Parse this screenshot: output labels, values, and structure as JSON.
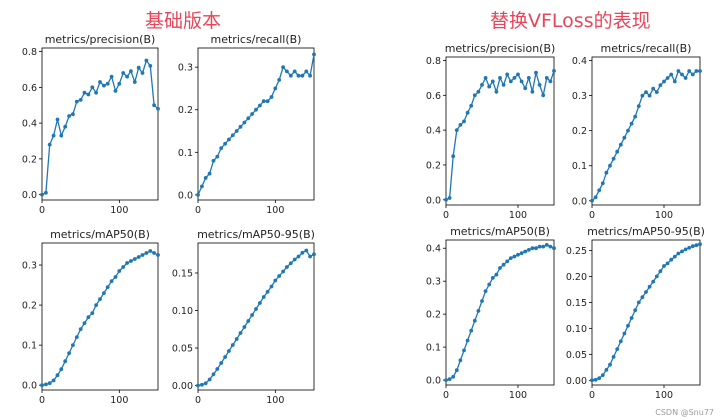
{
  "headings": {
    "left": "基础版本",
    "right": "替换VFLoss的表现"
  },
  "watermark": "CSDN @Snu77",
  "style": {
    "line_color": "#1f77b4",
    "marker_color": "#1f77b4",
    "heading_color": "#e8455a"
  },
  "chart_data": [
    {
      "type": "line",
      "group": "left",
      "title": "metrics/precision(B)",
      "xlim": [
        0,
        150
      ],
      "ylim": [
        -0.03,
        0.82
      ],
      "xticks": [
        0,
        100
      ],
      "yticks": [
        0.0,
        0.2,
        0.4,
        0.6,
        0.8
      ],
      "ytick_labels": [
        "0.0",
        "0.2",
        "0.4",
        "0.6",
        "0.8"
      ],
      "x": [
        0,
        5,
        10,
        15,
        20,
        25,
        30,
        35,
        40,
        45,
        50,
        55,
        60,
        65,
        70,
        75,
        80,
        85,
        90,
        95,
        100,
        105,
        110,
        115,
        120,
        125,
        130,
        135,
        140,
        145,
        150
      ],
      "y": [
        0.0,
        0.01,
        0.28,
        0.33,
        0.42,
        0.33,
        0.38,
        0.44,
        0.45,
        0.52,
        0.53,
        0.57,
        0.56,
        0.6,
        0.57,
        0.63,
        0.61,
        0.62,
        0.66,
        0.58,
        0.62,
        0.68,
        0.66,
        0.69,
        0.63,
        0.71,
        0.68,
        0.75,
        0.72,
        0.5,
        0.48
      ]
    },
    {
      "type": "line",
      "group": "left",
      "title": "metrics/recall(B)",
      "xlim": [
        0,
        150
      ],
      "ylim": [
        -0.012,
        0.345
      ],
      "xticks": [
        0,
        100
      ],
      "yticks": [
        0.0,
        0.1,
        0.2,
        0.3
      ],
      "ytick_labels": [
        "0.0",
        "0.1",
        "0.2",
        "0.3"
      ],
      "x": [
        0,
        5,
        10,
        15,
        20,
        25,
        30,
        35,
        40,
        45,
        50,
        55,
        60,
        65,
        70,
        75,
        80,
        85,
        90,
        95,
        100,
        105,
        110,
        115,
        120,
        125,
        130,
        135,
        140,
        145,
        150
      ],
      "y": [
        0.0,
        0.02,
        0.04,
        0.05,
        0.08,
        0.09,
        0.11,
        0.12,
        0.13,
        0.14,
        0.15,
        0.16,
        0.17,
        0.18,
        0.19,
        0.2,
        0.21,
        0.22,
        0.22,
        0.23,
        0.25,
        0.27,
        0.3,
        0.29,
        0.28,
        0.29,
        0.28,
        0.28,
        0.29,
        0.28,
        0.33
      ]
    },
    {
      "type": "line",
      "group": "left",
      "title": "metrics/mAP50(B)",
      "xlim": [
        0,
        150
      ],
      "ylim": [
        -0.012,
        0.355
      ],
      "xticks": [
        0,
        100
      ],
      "yticks": [
        0.0,
        0.1,
        0.2,
        0.3
      ],
      "ytick_labels": [
        "0.0",
        "0.1",
        "0.2",
        "0.3"
      ],
      "x": [
        0,
        5,
        10,
        15,
        20,
        25,
        30,
        35,
        40,
        45,
        50,
        55,
        60,
        65,
        70,
        75,
        80,
        85,
        90,
        95,
        100,
        105,
        110,
        115,
        120,
        125,
        130,
        135,
        140,
        145,
        150
      ],
      "y": [
        0.0,
        0.002,
        0.005,
        0.012,
        0.025,
        0.04,
        0.06,
        0.08,
        0.1,
        0.12,
        0.14,
        0.155,
        0.17,
        0.18,
        0.2,
        0.215,
        0.23,
        0.245,
        0.26,
        0.27,
        0.285,
        0.295,
        0.305,
        0.31,
        0.315,
        0.32,
        0.325,
        0.33,
        0.335,
        0.33,
        0.325
      ]
    },
    {
      "type": "line",
      "group": "left",
      "title": "metrics/mAP50-95(B)",
      "xlim": [
        0,
        150
      ],
      "ylim": [
        -0.006,
        0.19
      ],
      "xticks": [
        0,
        100
      ],
      "yticks": [
        0.0,
        0.05,
        0.1,
        0.15
      ],
      "ytick_labels": [
        "0.00",
        "0.05",
        "0.10",
        "0.15"
      ],
      "x": [
        0,
        5,
        10,
        15,
        20,
        25,
        30,
        35,
        40,
        45,
        50,
        55,
        60,
        65,
        70,
        75,
        80,
        85,
        90,
        95,
        100,
        105,
        110,
        115,
        120,
        125,
        130,
        135,
        140,
        145,
        150
      ],
      "y": [
        0.0,
        0.001,
        0.003,
        0.008,
        0.015,
        0.022,
        0.03,
        0.038,
        0.046,
        0.054,
        0.062,
        0.07,
        0.078,
        0.086,
        0.094,
        0.102,
        0.11,
        0.118,
        0.125,
        0.132,
        0.14,
        0.146,
        0.152,
        0.158,
        0.163,
        0.168,
        0.172,
        0.177,
        0.18,
        0.172,
        0.175
      ]
    },
    {
      "type": "line",
      "group": "right",
      "title": "metrics/precision(B)",
      "xlim": [
        0,
        150
      ],
      "ylim": [
        -0.03,
        0.82
      ],
      "xticks": [
        0,
        100
      ],
      "yticks": [
        0.0,
        0.2,
        0.4,
        0.6,
        0.8
      ],
      "ytick_labels": [
        "0.0",
        "0.2",
        "0.4",
        "0.6",
        "0.8"
      ],
      "x": [
        0,
        5,
        10,
        15,
        20,
        25,
        30,
        35,
        40,
        45,
        50,
        55,
        60,
        65,
        70,
        75,
        80,
        85,
        90,
        95,
        100,
        105,
        110,
        115,
        120,
        125,
        130,
        135,
        140,
        145,
        150
      ],
      "y": [
        0.0,
        0.01,
        0.25,
        0.4,
        0.43,
        0.45,
        0.5,
        0.54,
        0.6,
        0.62,
        0.66,
        0.7,
        0.65,
        0.68,
        0.62,
        0.7,
        0.66,
        0.72,
        0.68,
        0.7,
        0.72,
        0.68,
        0.64,
        0.7,
        0.62,
        0.73,
        0.66,
        0.6,
        0.7,
        0.68,
        0.74
      ]
    },
    {
      "type": "line",
      "group": "right",
      "title": "metrics/recall(B)",
      "xlim": [
        0,
        150
      ],
      "ylim": [
        -0.012,
        0.41
      ],
      "xticks": [
        0,
        100
      ],
      "yticks": [
        0.0,
        0.1,
        0.2,
        0.3,
        0.4
      ],
      "ytick_labels": [
        "0.0",
        "0.1",
        "0.2",
        "0.3",
        "0.4"
      ],
      "x": [
        0,
        5,
        10,
        15,
        20,
        25,
        30,
        35,
        40,
        45,
        50,
        55,
        60,
        65,
        70,
        75,
        80,
        85,
        90,
        95,
        100,
        105,
        110,
        115,
        120,
        125,
        130,
        135,
        140,
        145,
        150
      ],
      "y": [
        0.0,
        0.01,
        0.03,
        0.05,
        0.08,
        0.1,
        0.12,
        0.14,
        0.16,
        0.18,
        0.2,
        0.22,
        0.24,
        0.27,
        0.3,
        0.31,
        0.3,
        0.32,
        0.31,
        0.33,
        0.34,
        0.35,
        0.36,
        0.34,
        0.37,
        0.36,
        0.35,
        0.37,
        0.36,
        0.37,
        0.37
      ]
    },
    {
      "type": "line",
      "group": "right",
      "title": "metrics/mAP50(B)",
      "xlim": [
        0,
        150
      ],
      "ylim": [
        -0.015,
        0.425
      ],
      "xticks": [
        0,
        100
      ],
      "yticks": [
        0.0,
        0.1,
        0.2,
        0.3,
        0.4
      ],
      "ytick_labels": [
        "0.0",
        "0.1",
        "0.2",
        "0.3",
        "0.4"
      ],
      "x": [
        0,
        5,
        10,
        15,
        20,
        25,
        30,
        35,
        40,
        45,
        50,
        55,
        60,
        65,
        70,
        75,
        80,
        85,
        90,
        95,
        100,
        105,
        110,
        115,
        120,
        125,
        130,
        135,
        140,
        145,
        150
      ],
      "y": [
        0.0,
        0.003,
        0.01,
        0.03,
        0.06,
        0.09,
        0.12,
        0.15,
        0.18,
        0.21,
        0.24,
        0.27,
        0.29,
        0.31,
        0.32,
        0.34,
        0.35,
        0.36,
        0.37,
        0.375,
        0.38,
        0.385,
        0.39,
        0.395,
        0.4,
        0.4,
        0.405,
        0.405,
        0.41,
        0.405,
        0.4
      ]
    },
    {
      "type": "line",
      "group": "right",
      "title": "metrics/mAP50-95(B)",
      "xlim": [
        0,
        150
      ],
      "ylim": [
        -0.009,
        0.27
      ],
      "xticks": [
        0,
        100
      ],
      "yticks": [
        0.0,
        0.05,
        0.1,
        0.15,
        0.2,
        0.25
      ],
      "ytick_labels": [
        "0.00",
        "0.05",
        "0.10",
        "0.15",
        "0.20",
        "0.25"
      ],
      "x": [
        0,
        5,
        10,
        15,
        20,
        25,
        30,
        35,
        40,
        45,
        50,
        55,
        60,
        65,
        70,
        75,
        80,
        85,
        90,
        95,
        100,
        105,
        110,
        115,
        120,
        125,
        130,
        135,
        140,
        145,
        150
      ],
      "y": [
        0.0,
        0.001,
        0.004,
        0.01,
        0.02,
        0.03,
        0.045,
        0.06,
        0.075,
        0.09,
        0.105,
        0.12,
        0.135,
        0.15,
        0.16,
        0.17,
        0.18,
        0.19,
        0.2,
        0.21,
        0.22,
        0.225,
        0.232,
        0.238,
        0.244,
        0.248,
        0.252,
        0.255,
        0.258,
        0.26,
        0.262
      ]
    }
  ]
}
